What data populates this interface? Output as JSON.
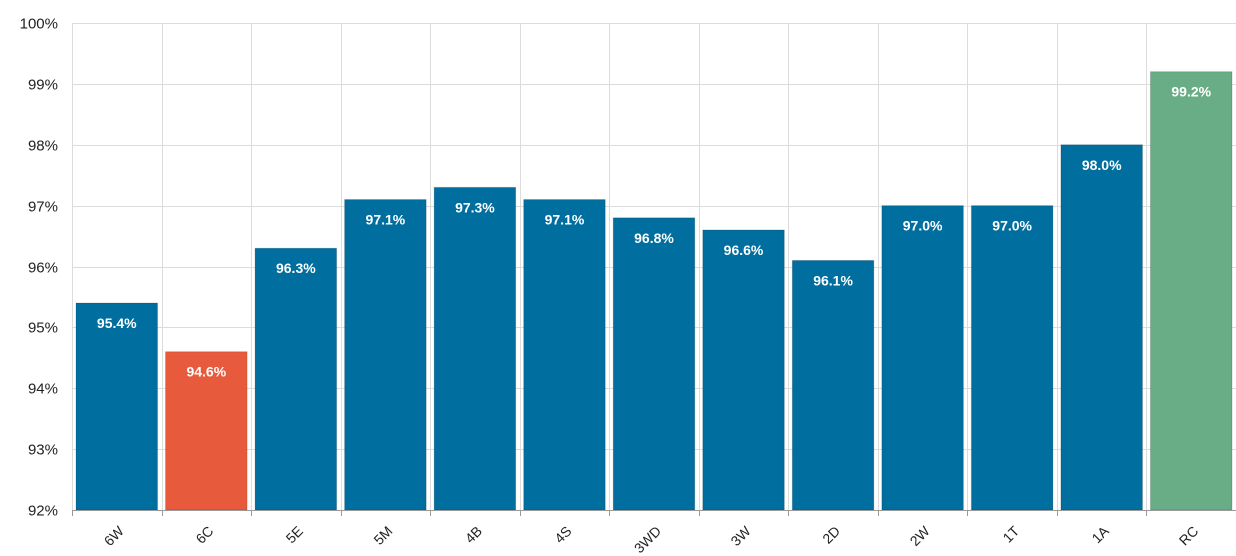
{
  "chart_data": {
    "type": "bar",
    "title": "",
    "xlabel": "",
    "ylabel": "",
    "categories": [
      "6W",
      "6C",
      "5E",
      "5M",
      "4B",
      "4S",
      "3WD",
      "3W",
      "2D",
      "2W",
      "1T",
      "1A",
      "RC"
    ],
    "values": [
      95.4,
      94.6,
      96.3,
      97.1,
      97.3,
      97.1,
      96.8,
      96.6,
      96.1,
      97.0,
      97.0,
      98.0,
      99.2
    ],
    "value_labels": [
      "95.4%",
      "94.6%",
      "96.3%",
      "97.1%",
      "97.3%",
      "97.1%",
      "96.8%",
      "96.6%",
      "96.1%",
      "97.0%",
      "97.0%",
      "98.0%",
      "99.2%"
    ],
    "bar_colors": [
      "#006e9e",
      "#e85a3c",
      "#006e9e",
      "#006e9e",
      "#006e9e",
      "#006e9e",
      "#006e9e",
      "#006e9e",
      "#006e9e",
      "#006e9e",
      "#006e9e",
      "#006e9e",
      "#69ad86"
    ],
    "ylim": [
      92,
      100
    ],
    "yticks": [
      92,
      93,
      94,
      95,
      96,
      97,
      98,
      99,
      100
    ],
    "ytick_labels": [
      "92%",
      "93%",
      "94%",
      "95%",
      "96%",
      "97%",
      "98%",
      "99%",
      "100%"
    ],
    "grid": true,
    "legend": "none"
  }
}
